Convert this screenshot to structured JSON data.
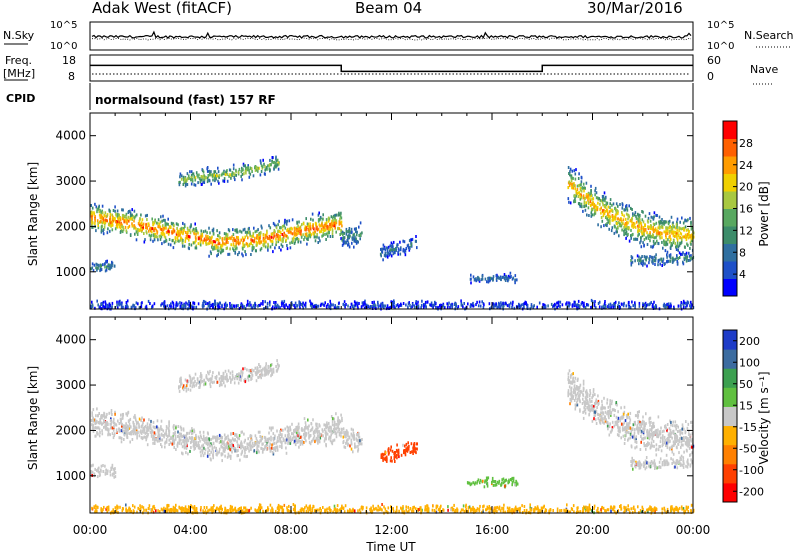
{
  "header": {
    "station": "Adak West (fitACF)",
    "beam": "Beam 04",
    "date": "30/Mar/2016"
  },
  "noise_panel": {
    "left_label": "N.Sky",
    "right_label": "N.Search",
    "ytick_left": [
      "10^5",
      "10^0"
    ],
    "ytick_right": [
      "10^5",
      "10^0"
    ]
  },
  "freq_panel": {
    "left_label_1": "Freq.",
    "left_label_2": "[MHz]",
    "right_label": "Nave",
    "yticks_left": [
      "18",
      "8"
    ],
    "yticks_right": [
      "60",
      "0"
    ],
    "freq_steps": [
      [
        0,
        14.5
      ],
      [
        10,
        12.0
      ],
      [
        18,
        14.5
      ],
      [
        24,
        14.5
      ]
    ]
  },
  "cpid": {
    "label": "CPID",
    "value": "normalsound (fast) 157 RF"
  },
  "chart_data": [
    {
      "type": "heatmap",
      "parameter": "Power",
      "ylabel": "Slant Range [km]",
      "xlim": [
        0,
        24
      ],
      "ylim": [
        180,
        4500
      ],
      "yticks": [
        "1000",
        "2000",
        "3000",
        "4000"
      ],
      "colorbar_label": "Power [dB]",
      "colorbar_ticks": [
        "28",
        "24",
        "20",
        "16",
        "12",
        "8",
        "4"
      ],
      "colorbar_colors": [
        "#0000ff",
        "#1e50c8",
        "#2f6fa0",
        "#3c8c6a",
        "#58a860",
        "#a8c840",
        "#f0d000",
        "#ff9c00",
        "#ff6000",
        "#ff0000"
      ],
      "regions": [
        {
          "t0": 0.0,
          "t1": 10.0,
          "r_center": [
            2200,
            2050,
            1850,
            1650,
            1700,
            1900,
            2050
          ],
          "width": 350,
          "peak": "#ff6000"
        },
        {
          "t0": 3.5,
          "t1": 7.5,
          "r_center": [
            3000,
            3100,
            3150,
            3250,
            3400
          ],
          "width": 200,
          "peak": "#a8c840"
        },
        {
          "t0": 0.0,
          "t1": 1.0,
          "r_center": [
            1100,
            1100
          ],
          "width": 150,
          "peak": "#3c8c6a"
        },
        {
          "t0": 10.0,
          "t1": 10.8,
          "r_center": [
            1800,
            1800
          ],
          "width": 300,
          "peak": "#3c8c6a"
        },
        {
          "t0": 11.5,
          "t1": 13.0,
          "r_center": [
            1400,
            1650
          ],
          "width": 200,
          "peak": "#2f6fa0"
        },
        {
          "t0": 15.0,
          "t1": 17.0,
          "r_center": [
            850,
            850
          ],
          "width": 120,
          "peak": "#2f6fa0"
        },
        {
          "t0": 19.0,
          "t1": 24.0,
          "r_center": [
            2950,
            2400,
            2050,
            1850,
            1800
          ],
          "width": 450,
          "peak": "#ff9c00"
        },
        {
          "t0": 21.5,
          "t1": 24.0,
          "r_center": [
            1250,
            1300
          ],
          "width": 150,
          "peak": "#3c8c6a"
        },
        {
          "t0": 0.0,
          "t1": 24.0,
          "r_center": [
            250,
            250
          ],
          "width": 120,
          "peak": "#1e50c8"
        }
      ]
    },
    {
      "type": "heatmap",
      "parameter": "Velocity",
      "ylabel": "Slant Range [km]",
      "xlabel": "Time UT",
      "xlim": [
        0,
        24
      ],
      "xticks": [
        "00:00",
        "04:00",
        "08:00",
        "12:00",
        "16:00",
        "20:00",
        "00:00"
      ],
      "ylim": [
        180,
        4500
      ],
      "yticks": [
        "1000",
        "2000",
        "3000",
        "4000"
      ],
      "colorbar_label": "Velocity [m s⁻¹]",
      "colorbar_ticks": [
        "200",
        "100",
        "50",
        "15",
        "-15",
        "-50",
        "-100",
        "-200"
      ],
      "colorbar_colors": [
        "#ff0000",
        "#ff4000",
        "#ff8000",
        "#ffb000",
        "#c8c8c8",
        "#60c040",
        "#3ca050",
        "#3c6ca0",
        "#1e3cc8"
      ],
      "regions": [
        {
          "t0": 0.0,
          "t1": 10.0,
          "r_center": [
            2200,
            2050,
            1850,
            1650,
            1700,
            1900,
            2050
          ],
          "width": 350,
          "color": "#c8c8c8"
        },
        {
          "t0": 3.5,
          "t1": 7.5,
          "r_center": [
            3000,
            3100,
            3150,
            3250,
            3400
          ],
          "width": 200,
          "color": "#c8c8c8"
        },
        {
          "t0": 0.0,
          "t1": 1.0,
          "r_center": [
            1100,
            1100
          ],
          "width": 150,
          "color": "#c8c8c8"
        },
        {
          "t0": 10.0,
          "t1": 10.8,
          "r_center": [
            1800,
            1800
          ],
          "width": 300,
          "color": "#c8c8c8"
        },
        {
          "t0": 11.5,
          "t1": 13.0,
          "r_center": [
            1400,
            1650
          ],
          "width": 200,
          "color": "#ff4000"
        },
        {
          "t0": 15.0,
          "t1": 17.0,
          "r_center": [
            850,
            850
          ],
          "width": 120,
          "color": "#60c040"
        },
        {
          "t0": 19.0,
          "t1": 24.0,
          "r_center": [
            2950,
            2400,
            2050,
            1850,
            1800
          ],
          "width": 450,
          "color": "#c8c8c8"
        },
        {
          "t0": 21.5,
          "t1": 24.0,
          "r_center": [
            1250,
            1300
          ],
          "width": 150,
          "color": "#c8c8c8"
        },
        {
          "t0": 0.0,
          "t1": 24.0,
          "r_center": [
            250,
            250
          ],
          "width": 120,
          "color": "#ffb000"
        }
      ]
    }
  ]
}
